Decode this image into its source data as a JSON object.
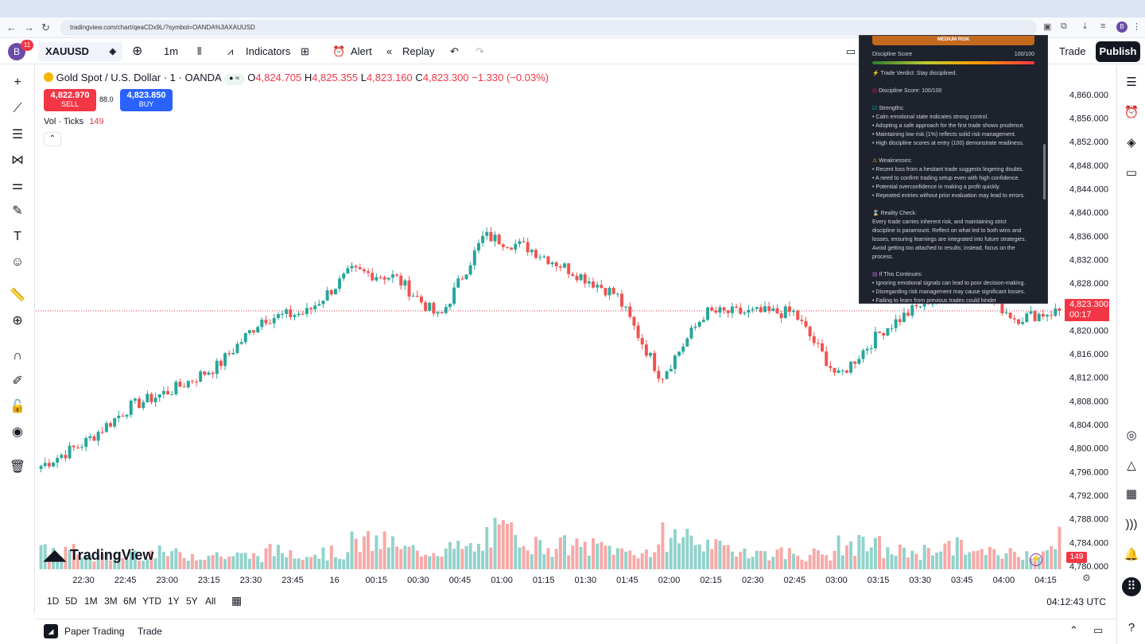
{
  "browser": {
    "url": "tradingview.com/chart/qeaCDx9L/?symbol=OANDA%3AXAUUSD",
    "profile_initial": "B"
  },
  "toolbar": {
    "avatar_initial": "B",
    "notifications": "11",
    "symbol": "XAUUSD",
    "interval": "1m",
    "indicators_label": "Indicators",
    "alert_label": "Alert",
    "replay_label": "Replay",
    "trade_label": "Trade",
    "publish_label": "Publish"
  },
  "legend": {
    "title": "Gold Spot / U.S. Dollar · 1 · OANDA",
    "open_label": "O",
    "open": "4,824.705",
    "high_label": "H",
    "high": "4,825.355",
    "low_label": "L",
    "low": "4,823.160",
    "close_label": "C",
    "close": "4,823.300",
    "change": "−1.330 (−0.03%)",
    "sell_price": "4,822.970",
    "sell_label": "SELL",
    "spread": "88.0",
    "buy_price": "4,823.850",
    "buy_label": "BUY",
    "vol_label": "Vol · Ticks",
    "vol_value": "149"
  },
  "price_axis": {
    "labels": [
      "4,860.000",
      "4,856.000",
      "4,852.000",
      "4,848.000",
      "4,844.000",
      "4,840.000",
      "4,836.000",
      "4,832.000",
      "4,828.000",
      "4,824.000",
      "4,820.000",
      "4,816.000",
      "4,812.000",
      "4,808.000",
      "4,804.000",
      "4,800.000",
      "4,796.000",
      "4,792.000",
      "4,788.000",
      "4,784.000",
      "4,780.000"
    ],
    "current_price": "4,823.300",
    "countdown": "00:17",
    "volume_tag": "149"
  },
  "time_axis": {
    "labels": [
      "22:30",
      "22:45",
      "23:00",
      "23:15",
      "23:30",
      "23:45",
      "16",
      "00:15",
      "00:30",
      "00:45",
      "01:00",
      "01:15",
      "01:30",
      "01:45",
      "02:00",
      "02:15",
      "02:30",
      "02:45",
      "03:00",
      "03:15",
      "03:30",
      "03:45",
      "04:00",
      "04:15"
    ]
  },
  "ranges": [
    "1D",
    "5D",
    "1M",
    "3M",
    "6M",
    "YTD",
    "1Y",
    "5Y",
    "All"
  ],
  "clock": "04:12:43 UTC",
  "bottom_bar": {
    "paper_trading": "Paper Trading",
    "trade": "Trade"
  },
  "watermark": "TradingView",
  "panel": {
    "risk_label": "MEDIUM RISK",
    "score_label": "Discipline Score",
    "score_value": "100/100",
    "verdict": "Trade Verdict: Stay disciplined.",
    "discipline": "Discipline Score: 100/100",
    "strengths_title": "Strengths:",
    "strengths": [
      "• Calm emotional state indicates strong control.",
      "• Adopting a safe approach for the first trade shows prudence.",
      "• Maintaining low risk (1%) reflects solid risk management.",
      "• High discipline scores at entry (100) demonstrate readiness."
    ],
    "weaknesses_title": "Weaknesses:",
    "weaknesses": [
      "• Recent loss from a hesitant trade suggests lingering doubts.",
      "• A need to confirm trading setup even with high confidence.",
      "• Potential overconfidence in making a profit quickly.",
      "• Repeated entries without prior evaluation may lead to errors."
    ],
    "reality_title": "Reality Check:",
    "reality_text": [
      "Every trade carries inherent risk, and maintaining strict",
      "discipline is paramount. Reflect on what led to both wins and",
      "losses, ensuring learnings are integrated into future strategies.",
      "Avoid getting too attached to results; instead, focus on the",
      "process."
    ],
    "continues_title": "If This Continues:",
    "continues": [
      "• Ignoring emotional signals can lead to poor decision-making.",
      "• Disregarding risk management may cause significant losses.",
      "• Failing to learn from previous trades could hinder"
    ]
  },
  "chart_data": {
    "type": "candlestick",
    "symbol": "XAUUSD",
    "ylim": [
      4780,
      4862
    ],
    "x": [
      "22:30",
      "22:45",
      "23:00",
      "23:15",
      "23:30",
      "23:45",
      "00:00",
      "00:15",
      "00:30",
      "00:45",
      "01:00",
      "01:15",
      "01:30",
      "01:45",
      "02:00",
      "02:15",
      "02:30",
      "02:45",
      "03:00",
      "03:15",
      "03:30",
      "03:45",
      "04:00",
      "04:10"
    ],
    "close": [
      4797,
      4801,
      4807,
      4810,
      4814,
      4822,
      4823,
      4830,
      4829,
      4822,
      4836,
      4834,
      4830,
      4826,
      4812,
      4823,
      4823,
      4823,
      4812,
      4820,
      4825,
      4828,
      4822,
      4823.3
    ],
    "volume": [
      60,
      40,
      55,
      50,
      45,
      60,
      55,
      90,
      65,
      70,
      120,
      80,
      75,
      60,
      110,
      70,
      55,
      50,
      80,
      60,
      75,
      55,
      60,
      149
    ]
  },
  "colors": {
    "up": "#26a69a",
    "down": "#ef5350",
    "accent": "#2962ff",
    "sell": "#f23645"
  }
}
